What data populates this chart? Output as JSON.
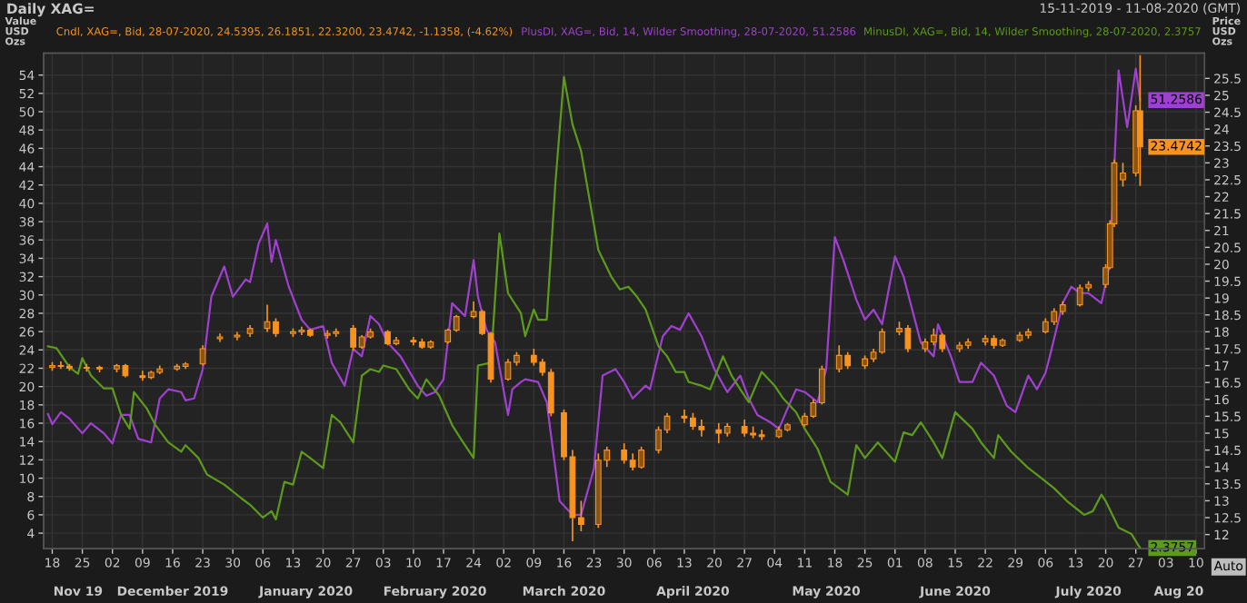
{
  "chart_data": {
    "type": "candlestick",
    "title": "Daily XAG=",
    "subtitle": "15-11-2019 - 11-08-2020 (GMT)",
    "ylabel": "Value\nUSD\nOzs",
    "y2label": "Price\nUSD\nOzs",
    "xlim": [
      "2019-11-16",
      "2020-08-12"
    ],
    "xticks": [
      {
        "value": "2019-11-18",
        "label": "18"
      },
      {
        "value": "2019-11-25",
        "label": "25"
      },
      {
        "value": "2019-12-02",
        "label": "02"
      },
      {
        "value": "2019-12-09",
        "label": "09"
      },
      {
        "value": "2019-12-16",
        "label": "16"
      },
      {
        "value": "2019-12-23",
        "label": "23"
      },
      {
        "value": "2019-12-30",
        "label": "30"
      },
      {
        "value": "2020-01-06",
        "label": "06"
      },
      {
        "value": "2020-01-13",
        "label": "13"
      },
      {
        "value": "2020-01-20",
        "label": "20"
      },
      {
        "value": "2020-01-27",
        "label": "27"
      },
      {
        "value": "2020-02-03",
        "label": "03"
      },
      {
        "value": "2020-02-10",
        "label": "10"
      },
      {
        "value": "2020-02-17",
        "label": "17"
      },
      {
        "value": "2020-02-24",
        "label": "24"
      },
      {
        "value": "2020-03-02",
        "label": "02"
      },
      {
        "value": "2020-03-09",
        "label": "09"
      },
      {
        "value": "2020-03-16",
        "label": "16"
      },
      {
        "value": "2020-03-23",
        "label": "23"
      },
      {
        "value": "2020-03-30",
        "label": "30"
      },
      {
        "value": "2020-04-06",
        "label": "06"
      },
      {
        "value": "2020-04-13",
        "label": "13"
      },
      {
        "value": "2020-04-20",
        "label": "20"
      },
      {
        "value": "2020-04-27",
        "label": "27"
      },
      {
        "value": "2020-05-04",
        "label": "04"
      },
      {
        "value": "2020-05-11",
        "label": "11"
      },
      {
        "value": "2020-05-18",
        "label": "18"
      },
      {
        "value": "2020-05-25",
        "label": "25"
      },
      {
        "value": "2020-06-01",
        "label": "01"
      },
      {
        "value": "2020-06-08",
        "label": "08"
      },
      {
        "value": "2020-06-15",
        "label": "15"
      },
      {
        "value": "2020-06-22",
        "label": "22"
      },
      {
        "value": "2020-06-29",
        "label": "29"
      },
      {
        "value": "2020-07-06",
        "label": "06"
      },
      {
        "value": "2020-07-13",
        "label": "13"
      },
      {
        "value": "2020-07-20",
        "label": "20"
      },
      {
        "value": "2020-07-27",
        "label": "27"
      },
      {
        "value": "2020-08-03",
        "label": "03"
      },
      {
        "value": "2020-08-10",
        "label": "10"
      }
    ],
    "x2lim": [
      "2019-11-16",
      "2020-08-12"
    ],
    "x2ticks": [
      {
        "value": "2019-11-24",
        "label": "Nov 19"
      },
      {
        "value": "2019-12-16",
        "label": "December 2019"
      },
      {
        "value": "2020-01-16",
        "label": "January 2020"
      },
      {
        "value": "2020-02-15",
        "label": "February 2020"
      },
      {
        "value": "2020-03-16",
        "label": "March 2020"
      },
      {
        "value": "2020-04-15",
        "label": "April 2020"
      },
      {
        "value": "2020-05-16",
        "label": "May 2020"
      },
      {
        "value": "2020-06-15",
        "label": "June 2020"
      },
      {
        "value": "2020-07-16",
        "label": "July 2020"
      },
      {
        "value": "2020-08-06",
        "label": "Aug 20"
      }
    ],
    "ylim": [
      2.3,
      56.4
    ],
    "yticks": [
      4,
      6,
      8,
      10,
      12,
      14,
      16,
      18,
      20,
      22,
      24,
      26,
      28,
      30,
      32,
      34,
      36,
      38,
      40,
      42,
      44,
      46,
      48,
      50,
      52,
      54
    ],
    "y2lim": [
      11.58,
      26.25
    ],
    "y2ticks": [
      12,
      12.5,
      13,
      13.5,
      14,
      14.5,
      15,
      15.5,
      16,
      16.5,
      17,
      17.5,
      18,
      18.5,
      19,
      19.5,
      20,
      20.5,
      21,
      21.5,
      22,
      22.5,
      23,
      23.5,
      24,
      24.5,
      25,
      25.5
    ],
    "grid": true,
    "legend": "top",
    "series": [
      {
        "name": "Cndl, XAG=, Bid, 28-07-2020, 24.5395, 26.1851, 22.3200, 23.4742, -1.1358, (-4.62%)",
        "axis": "y2",
        "color": "#f7931e",
        "x": [
          "2019-11-18",
          "2019-11-20",
          "2019-11-22",
          "2019-11-26",
          "2019-11-29",
          "2019-12-03",
          "2019-12-05",
          "2019-12-09",
          "2019-12-11",
          "2019-12-13",
          "2019-12-17",
          "2019-12-19",
          "2019-12-23",
          "2019-12-27",
          "2019-12-31",
          "2020-01-03",
          "2020-01-07",
          "2020-01-09",
          "2020-01-13",
          "2020-01-15",
          "2020-01-17",
          "2020-01-21",
          "2020-01-23",
          "2020-01-27",
          "2020-01-29",
          "2020-01-31",
          "2020-02-04",
          "2020-02-06",
          "2020-02-10",
          "2020-02-12",
          "2020-02-14",
          "2020-02-18",
          "2020-02-20",
          "2020-02-24",
          "2020-02-26",
          "2020-02-28",
          "2020-03-03",
          "2020-03-05",
          "2020-03-09",
          "2020-03-11",
          "2020-03-13",
          "2020-03-16",
          "2020-03-18",
          "2020-03-20",
          "2020-03-24",
          "2020-03-26",
          "2020-03-30",
          "2020-04-01",
          "2020-04-03",
          "2020-04-07",
          "2020-04-09",
          "2020-04-13",
          "2020-04-15",
          "2020-04-17",
          "2020-04-21",
          "2020-04-23",
          "2020-04-27",
          "2020-04-29",
          "2020-05-01",
          "2020-05-05",
          "2020-05-07",
          "2020-05-11",
          "2020-05-13",
          "2020-05-15",
          "2020-05-19",
          "2020-05-21",
          "2020-05-25",
          "2020-05-27",
          "2020-05-29",
          "2020-06-02",
          "2020-06-04",
          "2020-06-08",
          "2020-06-10",
          "2020-06-12",
          "2020-06-16",
          "2020-06-18",
          "2020-06-22",
          "2020-06-24",
          "2020-06-26",
          "2020-06-30",
          "2020-07-02",
          "2020-07-06",
          "2020-07-08",
          "2020-07-10",
          "2020-07-14",
          "2020-07-16",
          "2020-07-20",
          "2020-07-21",
          "2020-07-22",
          "2020-07-24",
          "2020-07-27",
          "2020-07-28"
        ],
        "ohlc": [
          [
            16.95,
            17.1,
            16.85,
            17.0
          ],
          [
            17.0,
            17.12,
            16.9,
            16.98
          ],
          [
            16.98,
            17.05,
            16.85,
            16.92
          ],
          [
            16.92,
            17.05,
            16.82,
            16.95
          ],
          [
            16.95,
            17.0,
            16.8,
            16.9
          ],
          [
            16.9,
            17.05,
            16.8,
            17.0
          ],
          [
            17.0,
            17.05,
            16.65,
            16.7
          ],
          [
            16.7,
            16.85,
            16.55,
            16.65
          ],
          [
            16.65,
            16.85,
            16.6,
            16.8
          ],
          [
            16.8,
            17.0,
            16.75,
            16.9
          ],
          [
            16.9,
            17.05,
            16.85,
            16.98
          ],
          [
            16.98,
            17.1,
            16.9,
            17.05
          ],
          [
            17.05,
            17.6,
            17.0,
            17.5
          ],
          [
            17.8,
            17.95,
            17.7,
            17.85
          ],
          [
            17.85,
            18.0,
            17.75,
            17.9
          ],
          [
            17.95,
            18.2,
            17.85,
            18.1
          ],
          [
            18.1,
            18.8,
            18.0,
            18.3
          ],
          [
            18.3,
            18.4,
            17.85,
            17.95
          ],
          [
            17.95,
            18.1,
            17.85,
            18.0
          ],
          [
            18.0,
            18.15,
            17.9,
            18.05
          ],
          [
            18.05,
            18.1,
            17.85,
            17.9
          ],
          [
            17.9,
            18.05,
            17.8,
            17.95
          ],
          [
            17.95,
            18.1,
            17.85,
            18.0
          ],
          [
            18.1,
            18.2,
            17.45,
            17.55
          ],
          [
            17.55,
            17.9,
            17.5,
            17.85
          ],
          [
            17.85,
            18.1,
            17.8,
            18.0
          ],
          [
            18.0,
            18.05,
            17.6,
            17.65
          ],
          [
            17.65,
            17.85,
            17.6,
            17.75
          ],
          [
            17.75,
            17.85,
            17.6,
            17.7
          ],
          [
            17.7,
            17.8,
            17.5,
            17.55
          ],
          [
            17.55,
            17.75,
            17.5,
            17.7
          ],
          [
            17.7,
            18.1,
            17.65,
            18.05
          ],
          [
            18.05,
            18.5,
            18.0,
            18.45
          ],
          [
            18.45,
            18.9,
            18.4,
            18.6
          ],
          [
            18.6,
            18.65,
            17.9,
            17.95
          ],
          [
            17.95,
            18.0,
            16.5,
            16.6
          ],
          [
            16.6,
            17.2,
            16.55,
            17.1
          ],
          [
            17.1,
            17.4,
            17.0,
            17.3
          ],
          [
            17.3,
            17.5,
            17.0,
            17.1
          ],
          [
            17.1,
            17.2,
            16.7,
            16.8
          ],
          [
            16.8,
            16.9,
            15.5,
            15.6
          ],
          [
            15.6,
            15.7,
            14.2,
            14.3
          ],
          [
            14.3,
            14.5,
            11.8,
            12.5
          ],
          [
            12.5,
            13.0,
            12.1,
            12.3
          ],
          [
            12.3,
            14.4,
            12.2,
            14.2
          ],
          [
            14.2,
            14.6,
            14.0,
            14.5
          ],
          [
            14.5,
            14.7,
            14.1,
            14.2
          ],
          [
            14.2,
            14.4,
            13.9,
            14.0
          ],
          [
            14.0,
            14.6,
            13.95,
            14.5
          ],
          [
            14.5,
            15.2,
            14.4,
            15.1
          ],
          [
            15.1,
            15.6,
            15.0,
            15.5
          ],
          [
            15.5,
            15.7,
            15.3,
            15.45
          ],
          [
            15.45,
            15.6,
            15.1,
            15.2
          ],
          [
            15.2,
            15.4,
            14.9,
            15.1
          ],
          [
            15.1,
            15.3,
            14.7,
            15.0
          ],
          [
            15.0,
            15.3,
            14.9,
            15.2
          ],
          [
            15.2,
            15.4,
            14.9,
            15.0
          ],
          [
            15.0,
            15.2,
            14.85,
            14.95
          ],
          [
            14.95,
            15.1,
            14.8,
            14.9
          ],
          [
            14.9,
            15.2,
            14.85,
            15.1
          ],
          [
            15.1,
            15.3,
            15.05,
            15.25
          ],
          [
            15.25,
            15.6,
            15.2,
            15.5
          ],
          [
            15.5,
            16.0,
            15.45,
            15.9
          ],
          [
            15.9,
            17.0,
            15.85,
            16.9
          ],
          [
            16.9,
            17.6,
            16.8,
            17.3
          ],
          [
            17.3,
            17.4,
            16.9,
            17.0
          ],
          [
            17.0,
            17.3,
            16.9,
            17.2
          ],
          [
            17.2,
            17.5,
            17.1,
            17.4
          ],
          [
            17.4,
            18.1,
            17.35,
            18.0
          ],
          [
            18.0,
            18.3,
            17.9,
            18.1
          ],
          [
            18.1,
            18.2,
            17.4,
            17.5
          ],
          [
            17.5,
            17.8,
            17.4,
            17.7
          ],
          [
            17.7,
            18.1,
            17.6,
            17.9
          ],
          [
            17.9,
            17.95,
            17.4,
            17.5
          ],
          [
            17.5,
            17.7,
            17.4,
            17.6
          ],
          [
            17.6,
            17.8,
            17.5,
            17.7
          ],
          [
            17.7,
            17.9,
            17.6,
            17.8
          ],
          [
            17.8,
            17.9,
            17.5,
            17.6
          ],
          [
            17.6,
            17.8,
            17.55,
            17.75
          ],
          [
            17.75,
            18.0,
            17.7,
            17.9
          ],
          [
            17.9,
            18.1,
            17.8,
            18.0
          ],
          [
            18.0,
            18.4,
            17.95,
            18.3
          ],
          [
            18.3,
            18.7,
            18.2,
            18.6
          ],
          [
            18.6,
            18.9,
            18.5,
            18.8
          ],
          [
            18.8,
            19.4,
            18.75,
            19.3
          ],
          [
            19.3,
            19.5,
            19.2,
            19.4
          ],
          [
            19.4,
            20.0,
            19.3,
            19.9
          ],
          [
            19.9,
            21.3,
            19.85,
            21.2
          ],
          [
            21.2,
            23.1,
            21.1,
            23.0
          ],
          [
            22.5,
            23.0,
            22.3,
            22.7
          ],
          [
            22.7,
            24.7,
            22.6,
            24.54
          ],
          [
            24.5395,
            26.1851,
            22.32,
            23.4742
          ]
        ],
        "value_labels": [
          null,
          null,
          null,
          null,
          null,
          null,
          null,
          null,
          null,
          null,
          null,
          null,
          null,
          null,
          null,
          null,
          null,
          null,
          null,
          null,
          null,
          null,
          null,
          null,
          null,
          null,
          null,
          null,
          null,
          null,
          null,
          null,
          null,
          null,
          null,
          null,
          null,
          null,
          null,
          null,
          null,
          null,
          null,
          null,
          null,
          null,
          null,
          null,
          null,
          null,
          null,
          null,
          null,
          null,
          null,
          null,
          null,
          null,
          null,
          null,
          null,
          null,
          null,
          null,
          null,
          null,
          null,
          null,
          null,
          null,
          null,
          null,
          null,
          null,
          null,
          null,
          null,
          null,
          null,
          null,
          null,
          null,
          null,
          null,
          null,
          null,
          null,
          null,
          null,
          null,
          null,
          "23.4742"
        ]
      },
      {
        "name": "PlusDI, XAG=, Bid, 14, Wilder Smoothing, 28-07-2020, 51.2586",
        "type": "line",
        "color": "#a040d0",
        "x": [
          "2019-11-17",
          "2019-11-18",
          "2019-11-20",
          "2019-11-22",
          "2019-11-25",
          "2019-11-27",
          "2019-11-30",
          "2019-12-02",
          "2019-12-04",
          "2019-12-06",
          "2019-12-08",
          "2019-12-11",
          "2019-12-13",
          "2019-12-15",
          "2019-12-18",
          "2019-12-19",
          "2019-12-21",
          "2019-12-23",
          "2019-12-25",
          "2019-12-28",
          "2019-12-30",
          "2020-01-02",
          "2020-01-03",
          "2020-01-05",
          "2020-01-07",
          "2020-01-08",
          "2020-01-09",
          "2020-01-12",
          "2020-01-15",
          "2020-01-17",
          "2020-01-20",
          "2020-01-22",
          "2020-01-25",
          "2020-01-27",
          "2020-01-29",
          "2020-01-31",
          "2020-02-02",
          "2020-02-04",
          "2020-02-07",
          "2020-02-11",
          "2020-02-13",
          "2020-02-15",
          "2020-02-17",
          "2020-02-19",
          "2020-02-22",
          "2020-02-24",
          "2020-02-25",
          "2020-02-27",
          "2020-02-29",
          "2020-03-03",
          "2020-03-04",
          "2020-03-06",
          "2020-03-07",
          "2020-03-10",
          "2020-03-12",
          "2020-03-13",
          "2020-03-15",
          "2020-03-18",
          "2020-03-20",
          "2020-03-23",
          "2020-03-25",
          "2020-03-28",
          "2020-03-30",
          "2020-04-01",
          "2020-04-04",
          "2020-04-05",
          "2020-04-08",
          "2020-04-10",
          "2020-04-12",
          "2020-04-14",
          "2020-04-17",
          "2020-04-20",
          "2020-04-23",
          "2020-04-26",
          "2020-04-28",
          "2020-04-30",
          "2020-05-03",
          "2020-05-05",
          "2020-05-07",
          "2020-05-09",
          "2020-05-11",
          "2020-05-14",
          "2020-05-16",
          "2020-05-18",
          "2020-05-20",
          "2020-05-23",
          "2020-05-25",
          "2020-05-27",
          "2020-05-29",
          "2020-06-01",
          "2020-06-03",
          "2020-06-05",
          "2020-06-07",
          "2020-06-10",
          "2020-06-11",
          "2020-06-14",
          "2020-06-16",
          "2020-06-19",
          "2020-06-21",
          "2020-06-24",
          "2020-06-27",
          "2020-06-29",
          "2020-07-02",
          "2020-07-04",
          "2020-07-06",
          "2020-07-07",
          "2020-07-10",
          "2020-07-12",
          "2020-07-14",
          "2020-07-16",
          "2020-07-19",
          "2020-07-21",
          "2020-07-23",
          "2020-07-25",
          "2020-07-27",
          "2020-07-28"
        ],
        "values": [
          17.0,
          15.9,
          17.2,
          16.5,
          14.9,
          16.0,
          14.9,
          13.8,
          16.9,
          16.9,
          14.3,
          13.9,
          18.7,
          19.7,
          19.4,
          18.5,
          18.7,
          21.9,
          29.8,
          33.1,
          29.8,
          31.7,
          31.4,
          35.6,
          37.8,
          33.6,
          36.0,
          30.9,
          27.3,
          26.2,
          26.6,
          22.6,
          20.1,
          24.1,
          23.3,
          27.7,
          26.8,
          24.8,
          23.3,
          20.1,
          19.0,
          19.4,
          20.8,
          29.1,
          27.7,
          33.8,
          29.8,
          26.2,
          24.8,
          16.9,
          19.7,
          20.5,
          20.8,
          20.5,
          18.3,
          14.7,
          7.5,
          6.0,
          6.0,
          11.1,
          21.2,
          21.9,
          20.5,
          18.7,
          20.1,
          19.7,
          25.5,
          26.6,
          26.2,
          28.0,
          25.5,
          21.9,
          19.4,
          21.2,
          18.7,
          16.9,
          16.1,
          15.4,
          17.6,
          19.7,
          19.4,
          18.3,
          21.9,
          36.3,
          33.8,
          29.5,
          27.3,
          28.4,
          26.8,
          34.2,
          32.0,
          28.4,
          24.8,
          23.3,
          26.8,
          23.3,
          20.5,
          20.5,
          22.6,
          21.2,
          17.9,
          17.2,
          21.2,
          19.7,
          21.5,
          23.3,
          29.1,
          30.9,
          30.2,
          30.2,
          29.1,
          33.5,
          54.5,
          48.3,
          54.7,
          51.2586
        ]
      },
      {
        "name": "MinusDI, XAG=, Bid, 14, Wilder Smoothing, 28-07-2020, 2.3757",
        "type": "line",
        "color": "#5c9a1c",
        "x": [
          "2019-11-17",
          "2019-11-19",
          "2019-11-22",
          "2019-11-24",
          "2019-11-25",
          "2019-11-27",
          "2019-11-30",
          "2019-12-02",
          "2019-12-04",
          "2019-12-06",
          "2019-12-07",
          "2019-12-10",
          "2019-12-12",
          "2019-12-15",
          "2019-12-18",
          "2019-12-19",
          "2019-12-22",
          "2019-12-24",
          "2019-12-28",
          "2020-01-01",
          "2020-01-03",
          "2020-01-06",
          "2020-01-08",
          "2020-01-09",
          "2020-01-11",
          "2020-01-13",
          "2020-01-15",
          "2020-01-17",
          "2020-01-20",
          "2020-01-22",
          "2020-01-24",
          "2020-01-27",
          "2020-01-29",
          "2020-01-31",
          "2020-02-02",
          "2020-02-03",
          "2020-02-06",
          "2020-02-09",
          "2020-02-11",
          "2020-02-13",
          "2020-02-16",
          "2020-02-19",
          "2020-02-21",
          "2020-02-24",
          "2020-02-25",
          "2020-02-28",
          "2020-03-01",
          "2020-03-03",
          "2020-03-06",
          "2020-03-07",
          "2020-03-09",
          "2020-03-10",
          "2020-03-12",
          "2020-03-14",
          "2020-03-16",
          "2020-03-18",
          "2020-03-20",
          "2020-03-24",
          "2020-03-27",
          "2020-03-29",
          "2020-03-31",
          "2020-04-02",
          "2020-04-04",
          "2020-04-07",
          "2020-04-09",
          "2020-04-11",
          "2020-04-13",
          "2020-04-14",
          "2020-04-17",
          "2020-04-19",
          "2020-04-22",
          "2020-04-24",
          "2020-04-26",
          "2020-04-28",
          "2020-05-01",
          "2020-05-04",
          "2020-05-06",
          "2020-05-09",
          "2020-05-11",
          "2020-05-14",
          "2020-05-17",
          "2020-05-21",
          "2020-05-23",
          "2020-05-25",
          "2020-05-28",
          "2020-06-01",
          "2020-06-03",
          "2020-06-05",
          "2020-06-07",
          "2020-06-10",
          "2020-06-12",
          "2020-06-15",
          "2020-06-19",
          "2020-06-21",
          "2020-06-24",
          "2020-06-25",
          "2020-06-28",
          "2020-07-02",
          "2020-07-04",
          "2020-07-08",
          "2020-07-11",
          "2020-07-15",
          "2020-07-17",
          "2020-07-19",
          "2020-07-20",
          "2020-07-23",
          "2020-07-26",
          "2020-07-28"
        ],
        "values": [
          24.4,
          24.2,
          22.1,
          21.4,
          23.1,
          21.2,
          19.8,
          19.8,
          16.9,
          15.4,
          19.4,
          17.6,
          15.8,
          13.9,
          12.9,
          13.6,
          12.2,
          10.4,
          9.3,
          7.8,
          7.1,
          5.7,
          6.4,
          5.5,
          9.6,
          9.3,
          12.9,
          12.2,
          11.1,
          16.9,
          16.1,
          13.9,
          21.2,
          21.9,
          21.6,
          22.3,
          21.9,
          19.7,
          18.7,
          20.8,
          19.0,
          15.8,
          14.3,
          12.2,
          22.3,
          22.6,
          36.7,
          30.2,
          28.0,
          25.5,
          28.4,
          27.3,
          27.3,
          42.1,
          53.8,
          48.6,
          45.7,
          34.9,
          32.0,
          30.6,
          30.9,
          29.8,
          28.4,
          24.4,
          23.3,
          21.6,
          21.6,
          20.5,
          20.1,
          19.7,
          23.3,
          21.2,
          19.7,
          18.3,
          21.6,
          20.1,
          18.7,
          17.2,
          15.4,
          13.2,
          9.6,
          8.2,
          13.6,
          12.2,
          13.9,
          11.8,
          15.0,
          14.7,
          16.1,
          13.9,
          12.2,
          17.2,
          15.4,
          13.9,
          12.2,
          14.7,
          12.9,
          11.1,
          10.4,
          8.9,
          7.5,
          6.0,
          6.4,
          8.2,
          7.5,
          4.6,
          3.9,
          2.3757
        ]
      }
    ],
    "annotations": [
      {
        "text": "51.2586",
        "x": "2020-07-28",
        "y": 51.2586
      },
      {
        "text": "2.3757",
        "x": "2020-07-28",
        "y": 2.3757
      },
      "Auto"
    ]
  }
}
